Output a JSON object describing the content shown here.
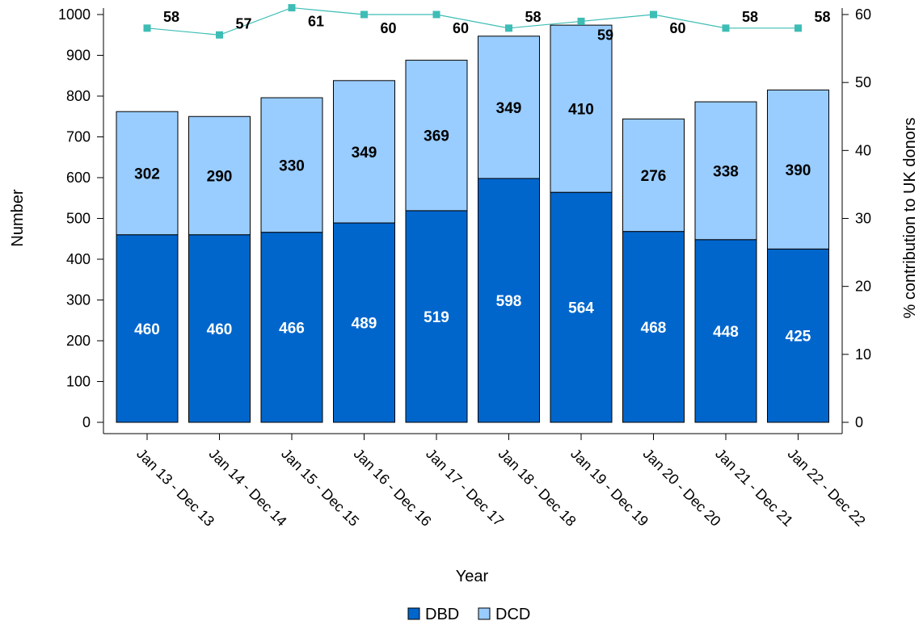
{
  "chart_data": {
    "type": "bar",
    "stacked": true,
    "categories": [
      "Jan 13 - Dec 13",
      "Jan 14 - Dec 14",
      "Jan 15 - Dec 15",
      "Jan 16 - Dec 16",
      "Jan 17 - Dec 17",
      "Jan 18 - Dec 18",
      "Jan 19 - Dec 19",
      "Jan 20 - Dec 20",
      "Jan 21 - Dec 21",
      "Jan 22 - Dec 22"
    ],
    "series": [
      {
        "name": "DBD",
        "axis": "left",
        "color": "#0066cc",
        "label_color": "#ffffff",
        "values": [
          460,
          460,
          466,
          489,
          519,
          598,
          564,
          468,
          448,
          425
        ]
      },
      {
        "name": "DCD",
        "axis": "left",
        "color": "#99ccff",
        "label_color": "#000000",
        "values": [
          302,
          290,
          330,
          349,
          369,
          349,
          410,
          276,
          338,
          390
        ]
      }
    ],
    "line_series": {
      "axis": "right",
      "color": "#3dbdb5",
      "values": [
        58,
        57,
        61,
        60,
        60,
        58,
        59,
        60,
        58,
        58
      ]
    },
    "xlabel": "Year",
    "ylabel": "Number",
    "ylabel_right": "% contribution to UK donors",
    "ylim": [
      0,
      1000
    ],
    "yticks": [
      0,
      100,
      200,
      300,
      400,
      500,
      600,
      700,
      800,
      900,
      1000
    ],
    "ylim_right": [
      0,
      60
    ],
    "yticks_right": [
      0,
      10,
      20,
      30,
      40,
      50,
      60
    ],
    "legend_position": "bottom",
    "legend": [
      "DBD",
      "DCD"
    ],
    "grid": false
  }
}
